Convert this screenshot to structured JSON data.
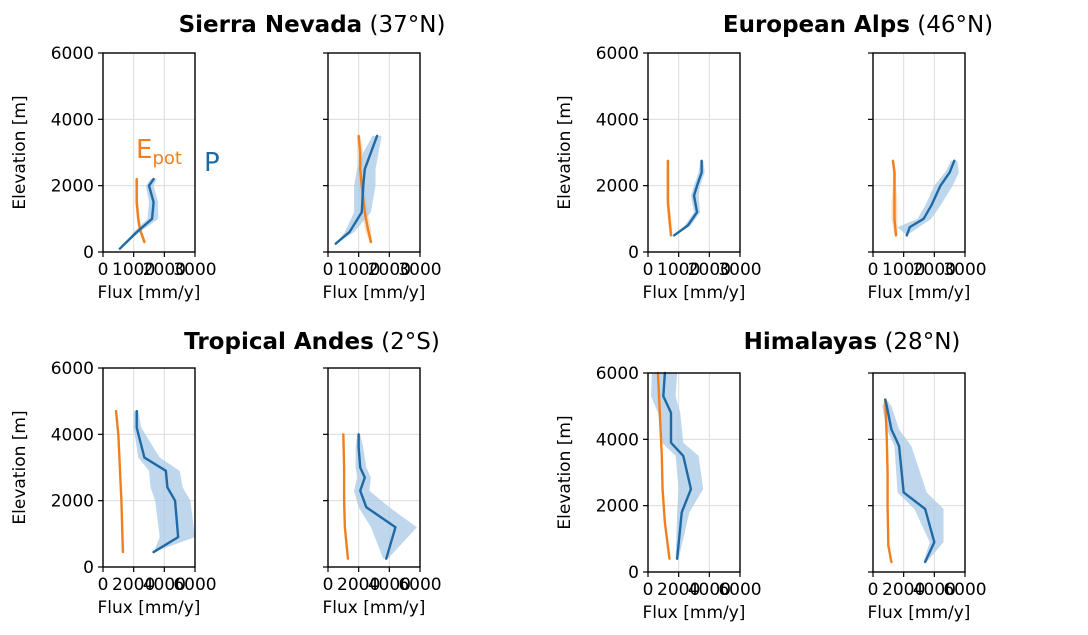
{
  "colors": {
    "P": "#1f6aa5",
    "P_band": "#a9c9e6",
    "Epot": "#f07f20",
    "Epot_band": "#f7c9a0",
    "grid": "#dcdcdc"
  },
  "annotations": {
    "epot_main": "E",
    "epot_sub": "pot",
    "p": "P"
  },
  "chart_data": [
    {
      "type": "line",
      "region_bold": "Sierra Nevada",
      "region_rest": "(37°N)",
      "ylabel": "Elevation [m]",
      "xlabel": "Flux [mm/y]",
      "ylim": [
        0,
        6000
      ],
      "yticks": [
        0,
        2000,
        4000,
        6000
      ],
      "panels": [
        {
          "xlim": [
            0,
            3000
          ],
          "xticks": [
            0,
            1000,
            2000,
            3000
          ],
          "show_ylabels": true,
          "series": [
            {
              "name": "P",
              "y": [
                100,
                600,
                1000,
                1500,
                2000,
                2200
              ],
              "x": [
                550,
                1100,
                1600,
                1650,
                1500,
                1650
              ],
              "lo": [
                550,
                1000,
                1450,
                1500,
                1400,
                1550
              ],
              "hi": [
                550,
                1200,
                1800,
                1800,
                1650,
                1750
              ]
            },
            {
              "name": "Epot",
              "y": [
                300,
                700,
                1000,
                1500,
                2000,
                2200
              ],
              "x": [
                1350,
                1200,
                1150,
                1100,
                1100,
                1100
              ],
              "lo": [
                1300,
                1150,
                1100,
                1050,
                1050,
                1050
              ],
              "hi": [
                1400,
                1250,
                1200,
                1150,
                1150,
                1150
              ]
            }
          ]
        },
        {
          "xlim": [
            0,
            3000
          ],
          "xticks": [
            0,
            1000,
            2000,
            3000
          ],
          "show_ylabels": false,
          "series": [
            {
              "name": "P",
              "y": [
                250,
                600,
                1200,
                2000,
                2500,
                3000,
                3500
              ],
              "x": [
                250,
                700,
                1100,
                1150,
                1200,
                1400,
                1600
              ],
              "lo": [
                250,
                550,
                850,
                850,
                950,
                1150,
                1450
              ],
              "hi": [
                250,
                850,
                1400,
                1550,
                1550,
                1650,
                1750
              ]
            },
            {
              "name": "Epot",
              "y": [
                300,
                700,
                1200,
                2000,
                2500,
                3000,
                3500
              ],
              "x": [
                1400,
                1300,
                1200,
                1100,
                1050,
                1050,
                1000
              ],
              "lo": [
                1350,
                1200,
                1100,
                1000,
                950,
                950,
                950
              ],
              "hi": [
                1450,
                1400,
                1300,
                1200,
                1150,
                1150,
                1050
              ]
            }
          ]
        }
      ]
    },
    {
      "type": "line",
      "region_bold": "European Alps",
      "region_rest": "(46°N)",
      "ylabel": "Elevation [m]",
      "xlabel": "Flux [mm/y]",
      "ylim": [
        0,
        6000
      ],
      "yticks": [
        0,
        2000,
        4000,
        6000
      ],
      "panels": [
        {
          "xlim": [
            0,
            3000
          ],
          "xticks": [
            0,
            1000,
            2000,
            3000
          ],
          "show_ylabels": true,
          "series": [
            {
              "name": "P",
              "y": [
                500,
                800,
                1200,
                1700,
                2000,
                2400,
                2750
              ],
              "x": [
                850,
                1300,
                1600,
                1500,
                1600,
                1750,
                1750
              ],
              "lo": [
                850,
                1200,
                1500,
                1400,
                1500,
                1650,
                1700
              ],
              "hi": [
                850,
                1400,
                1700,
                1650,
                1700,
                1850,
                1800
              ]
            },
            {
              "name": "Epot",
              "y": [
                500,
                1000,
                1500,
                2000,
                2400,
                2750
              ],
              "x": [
                750,
                700,
                650,
                650,
                650,
                650
              ],
              "lo": [
                700,
                650,
                600,
                600,
                600,
                600
              ],
              "hi": [
                800,
                750,
                700,
                700,
                700,
                700
              ]
            }
          ]
        },
        {
          "xlim": [
            0,
            3000
          ],
          "xticks": [
            0,
            1000,
            2000,
            3000
          ],
          "show_ylabels": false,
          "series": [
            {
              "name": "P",
              "y": [
                500,
                750,
                1000,
                1400,
                2000,
                2400,
                2750
              ],
              "x": [
                1100,
                1200,
                1650,
                1900,
                2200,
                2500,
                2650
              ],
              "lo": [
                1100,
                800,
                1450,
                1700,
                2000,
                2350,
                2550
              ],
              "hi": [
                1100,
                1500,
                1900,
                2200,
                2600,
                2800,
                2750
              ]
            },
            {
              "name": "Epot",
              "y": [
                500,
                1000,
                1500,
                2000,
                2400,
                2750
              ],
              "x": [
                750,
                700,
                700,
                700,
                700,
                650
              ],
              "lo": [
                700,
                600,
                600,
                650,
                650,
                600
              ],
              "hi": [
                800,
                800,
                800,
                750,
                750,
                700
              ]
            }
          ]
        }
      ]
    },
    {
      "type": "line",
      "region_bold": "Tropical Andes",
      "region_rest": "(2°S)",
      "ylabel": "Elevation [m]",
      "xlabel": "Flux [mm/y]",
      "ylim": [
        0,
        6000
      ],
      "yticks": [
        0,
        2000,
        4000,
        6000
      ],
      "panels": [
        {
          "xlim": [
            0,
            6000
          ],
          "xticks": [
            0,
            2000,
            4000,
            6000
          ],
          "show_ylabels": true,
          "series": [
            {
              "name": "P",
              "y": [
                450,
                900,
                2000,
                2400,
                2900,
                3300,
                4200,
                4700
              ],
              "x": [
                3300,
                4900,
                4700,
                4200,
                4100,
                2700,
                2200,
                2200
              ],
              "lo": [
                3300,
                3700,
                3400,
                3100,
                3000,
                2300,
                2000,
                2000
              ],
              "hi": [
                3300,
                6000,
                5700,
                5200,
                5000,
                3700,
                2500,
                2300
              ]
            },
            {
              "name": "Epot",
              "y": [
                450,
                1200,
                2000,
                3000,
                4000,
                4700
              ],
              "x": [
                1300,
                1250,
                1200,
                1100,
                1000,
                850
              ],
              "lo": [
                1300,
                1250,
                1200,
                1100,
                1000,
                850
              ],
              "hi": [
                1300,
                1250,
                1200,
                1100,
                1000,
                850
              ]
            }
          ]
        },
        {
          "xlim": [
            0,
            6000
          ],
          "xticks": [
            0,
            2000,
            4000,
            6000
          ],
          "show_ylabels": false,
          "series": [
            {
              "name": "P",
              "y": [
                250,
                1200,
                1800,
                2300,
                2700,
                3000,
                3600,
                4000
              ],
              "x": [
                3800,
                4400,
                2500,
                2100,
                2400,
                2100,
                2000,
                2000
              ],
              "lo": [
                3600,
                2800,
                2000,
                1700,
                1900,
                1800,
                1800,
                1900
              ],
              "hi": [
                3900,
                5800,
                4000,
                2700,
                2800,
                2500,
                2300,
                2100
              ]
            },
            {
              "name": "Epot",
              "y": [
                250,
                1200,
                2000,
                3000,
                4000
              ],
              "x": [
                1300,
                1100,
                1050,
                1050,
                1000
              ],
              "lo": [
                1300,
                1100,
                1050,
                1050,
                1000
              ],
              "hi": [
                1300,
                1100,
                1050,
                1050,
                1000
              ]
            }
          ]
        }
      ]
    },
    {
      "type": "line",
      "region_bold": "Himalayas",
      "region_rest": "(28°N)",
      "ylabel": "Elevation [m]",
      "xlabel": "Flux [mm/y]",
      "ylim": [
        0,
        6000
      ],
      "yticks": [
        0,
        2000,
        4000,
        6000
      ],
      "panels": [
        {
          "xlim": [
            0,
            6000
          ],
          "xticks": [
            0,
            2000,
            4000,
            6000
          ],
          "show_ylabels": true,
          "series": [
            {
              "name": "P",
              "y": [
                400,
                1800,
                2500,
                3500,
                3900,
                4800,
                5300,
                6000
              ],
              "x": [
                1900,
                2200,
                2800,
                2300,
                1500,
                1500,
                1000,
                1100
              ],
              "lo": [
                1800,
                1900,
                2000,
                1800,
                900,
                650,
                200,
                250
              ],
              "hi": [
                2000,
                2700,
                3600,
                3300,
                2300,
                2100,
                1800,
                1900
              ]
            },
            {
              "name": "Epot",
              "y": [
                400,
                1500,
                2500,
                3500,
                4500,
                6000
              ],
              "x": [
                1400,
                1100,
                950,
                900,
                800,
                650
              ],
              "lo": [
                1350,
                1050,
                900,
                850,
                750,
                600
              ],
              "hi": [
                1450,
                1150,
                1000,
                950,
                850,
                700
              ]
            }
          ]
        },
        {
          "xlim": [
            0,
            6000
          ],
          "xticks": [
            0,
            2000,
            4000,
            6000
          ],
          "show_ylabels": false,
          "series": [
            {
              "name": "P",
              "y": [
                300,
                900,
                1900,
                2400,
                3800,
                4300,
                5000,
                5200
              ],
              "x": [
                3400,
                4000,
                3400,
                2000,
                1700,
                1200,
                900,
                800
              ],
              "lo": [
                3300,
                3700,
                2700,
                1600,
                1400,
                900,
                600,
                800
              ],
              "hi": [
                3500,
                4600,
                4600,
                3500,
                2500,
                1700,
                1200,
                900
              ]
            },
            {
              "name": "Epot",
              "y": [
                300,
                800,
                2000,
                3000,
                4000,
                5200
              ],
              "x": [
                1200,
                1000,
                950,
                950,
                900,
                800
              ],
              "lo": [
                1150,
                950,
                900,
                900,
                850,
                750
              ],
              "hi": [
                1250,
                1050,
                1000,
                1000,
                950,
                850
              ]
            }
          ]
        }
      ]
    }
  ]
}
